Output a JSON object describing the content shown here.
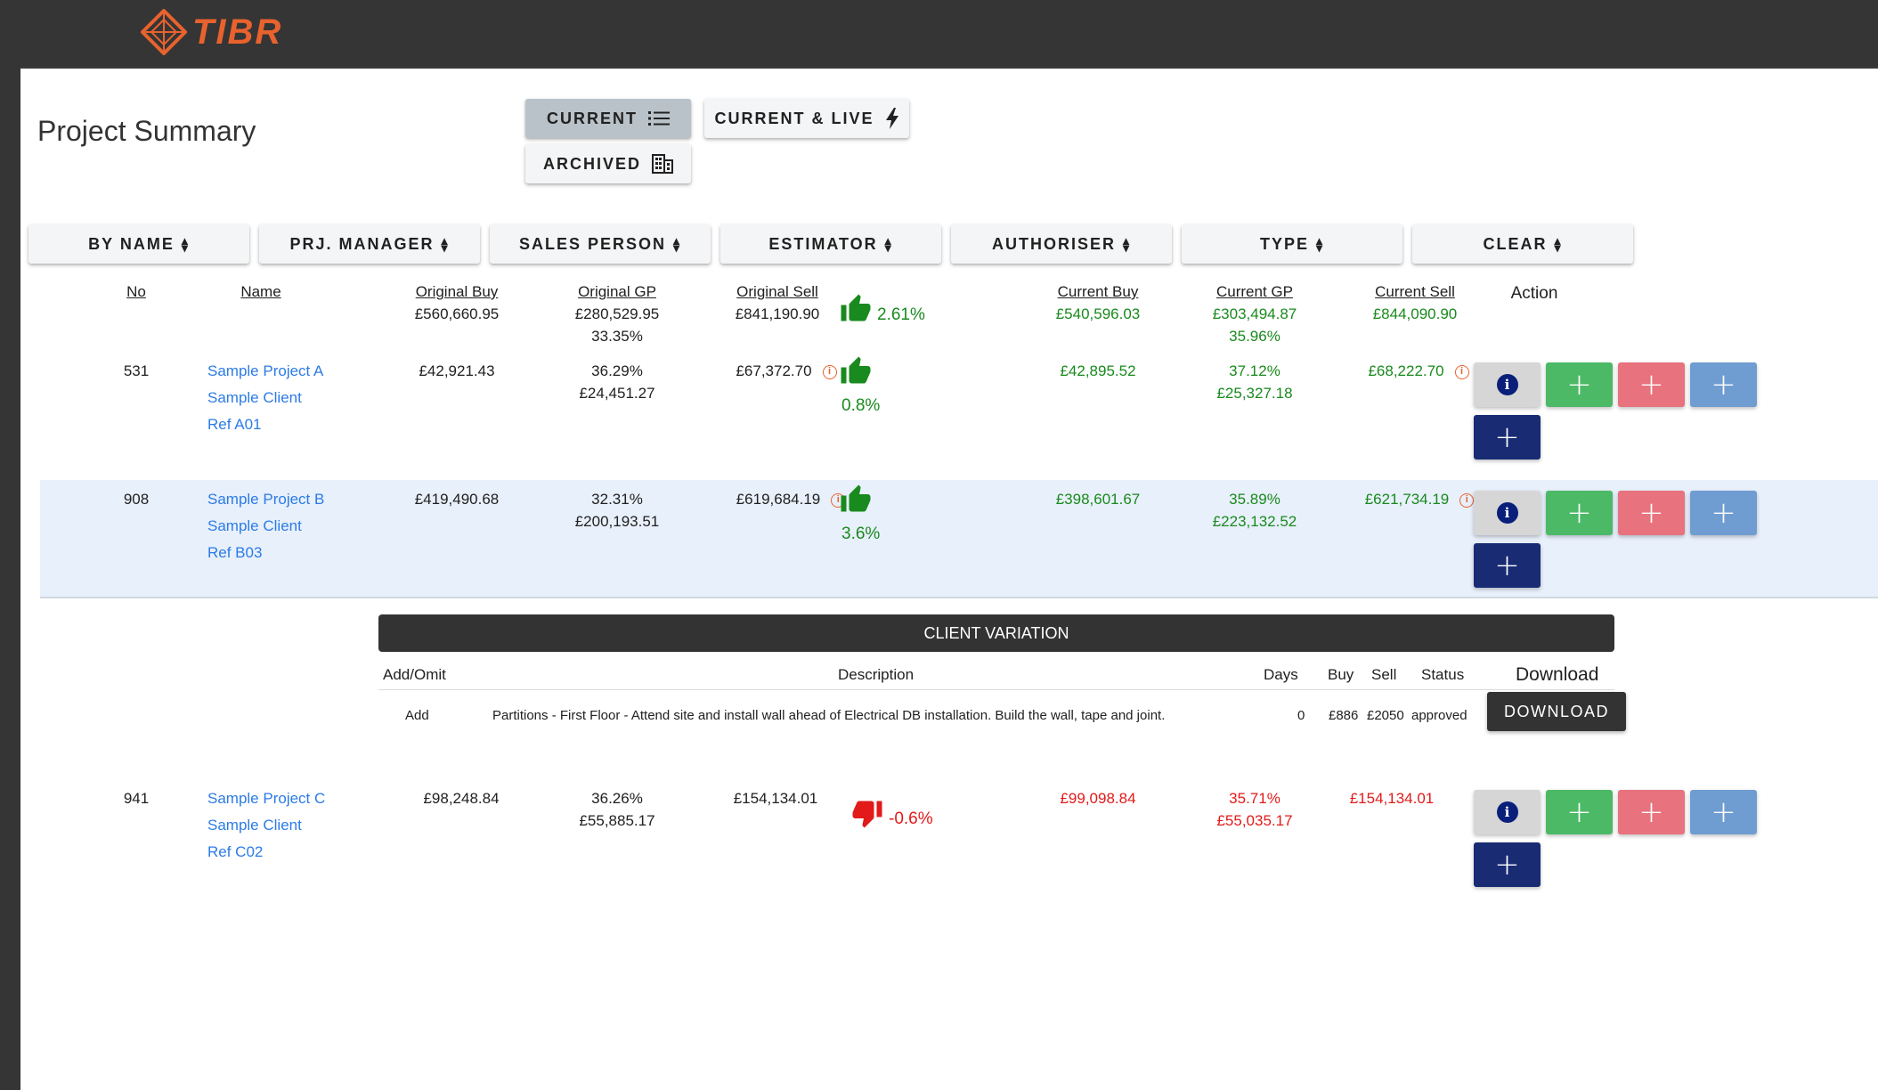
{
  "brand": {
    "logo_text": "TIBR",
    "accent": "#e8622e"
  },
  "page": {
    "title": "Project Summary"
  },
  "view_buttons": {
    "current": "CURRENT",
    "current_live": "CURRENT & LIVE",
    "archived": "ARCHIVED"
  },
  "sort_buttons": [
    "BY NAME",
    "PRJ. MANAGER",
    "SALES PERSON",
    "ESTIMATOR",
    "AUTHORISER",
    "TYPE",
    "CLEAR"
  ],
  "table": {
    "headers": {
      "no": "No",
      "name": "Name",
      "original_buy": "Original Buy",
      "original_gp": "Original GP",
      "original_sell": "Original Sell",
      "current_buy": "Current Buy",
      "current_gp": "Current GP",
      "current_sell": "Current Sell",
      "action": "Action"
    },
    "totals": {
      "original_buy": "£560,660.95",
      "original_gp": "£280,529.95",
      "original_gp_pct": "33.35%",
      "original_sell": "£841,190.90",
      "trend_pct": "2.61%",
      "current_buy": "£540,596.03",
      "current_gp": "£303,494.87",
      "current_gp_pct": "35.96%",
      "current_sell": "£844,090.90"
    },
    "rows": [
      {
        "no": "531",
        "project": "Sample Project A",
        "client": "Sample Client",
        "ref": "Ref A01",
        "original_buy": "£42,921.43",
        "original_gp_pct": "36.29%",
        "original_gp": "£24,451.27",
        "original_sell": "£67,372.70",
        "trend": "up",
        "trend_pct": "0.8%",
        "current_buy": "£42,895.52",
        "current_gp_pct": "37.12%",
        "current_gp": "£25,327.18",
        "current_sell": "£68,222.70"
      },
      {
        "no": "908",
        "project": "Sample Project B",
        "client": "Sample Client",
        "ref": "Ref B03",
        "original_buy": "£419,490.68",
        "original_gp_pct": "32.31%",
        "original_gp": "£200,193.51",
        "original_sell": "£619,684.19",
        "trend": "up",
        "trend_pct": "3.6%",
        "current_buy": "£398,601.67",
        "current_gp_pct": "35.89%",
        "current_gp": "£223,132.52",
        "current_sell": "£621,734.19"
      },
      {
        "no": "941",
        "project": "Sample Project C",
        "client": "Sample Client",
        "ref": "Ref C02",
        "original_buy": "£98,248.84",
        "original_gp_pct": "36.26%",
        "original_gp": "£55,885.17",
        "original_sell": "£154,134.01",
        "trend": "down",
        "trend_pct": "-0.6%",
        "current_buy": "£99,098.84",
        "current_gp_pct": "35.71%",
        "current_gp": "£55,035.17",
        "current_sell": "£154,134.01"
      }
    ]
  },
  "client_variation": {
    "title": "CLIENT VARIATION",
    "headers": {
      "add_omit": "Add/Omit",
      "description": "Description",
      "days": "Days",
      "buy": "Buy",
      "sell": "Sell",
      "status": "Status",
      "download": "Download"
    },
    "rows": [
      {
        "add_omit": "Add",
        "description": "Partitions - First Floor - Attend site and install wall ahead of Electrical DB installation. Build the wall, tape and joint.",
        "days": "0",
        "buy": "£886",
        "sell": "£2050",
        "status": "approved",
        "download_label": "DOWNLOAD"
      }
    ]
  },
  "icons": {
    "sort": "sort-caret-icon",
    "list": "list-icon",
    "bolt": "bolt-icon",
    "building": "building-icon",
    "thumb_up": "thumb-up-icon",
    "thumb_down": "thumb-down-icon",
    "info": "info-icon",
    "plus": "plus-icon"
  },
  "colors": {
    "positive": "#198a1d",
    "negative": "#e21a1a",
    "link": "#2c7be5",
    "btn_green": "#4cb966",
    "btn_red": "#e8727d",
    "btn_blue": "#6f9dd1",
    "btn_navy": "#182b73"
  }
}
